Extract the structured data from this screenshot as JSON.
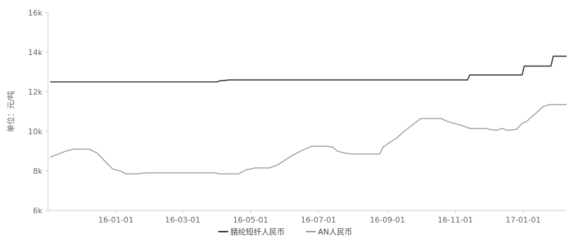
{
  "chart_data": {
    "type": "line",
    "title": "",
    "xlabel": "",
    "ylabel": "单位：元/吨",
    "ylim": [
      6000,
      16000
    ],
    "yticks": [
      {
        "value": 6000,
        "label": "6k"
      },
      {
        "value": 8000,
        "label": "8k"
      },
      {
        "value": 10000,
        "label": "10k"
      },
      {
        "value": 12000,
        "label": "12k"
      },
      {
        "value": 14000,
        "label": "14k"
      },
      {
        "value": 16000,
        "label": "16k"
      }
    ],
    "xlim": [
      "2015-11-01",
      "2017-02-09"
    ],
    "xticks": [
      {
        "value": "2016-01-01",
        "label": "16-01-01"
      },
      {
        "value": "2016-03-01",
        "label": "16-03-01"
      },
      {
        "value": "2016-05-01",
        "label": "16-05-01"
      },
      {
        "value": "2016-07-01",
        "label": "16-07-01"
      },
      {
        "value": "2016-09-01",
        "label": "16-09-01"
      },
      {
        "value": "2016-11-01",
        "label": "16-11-01"
      },
      {
        "value": "2017-01-01",
        "label": "17-01-01"
      }
    ],
    "grid": false,
    "legend_position": "bottom-center",
    "series": [
      {
        "name": "腈纶短纤人民币",
        "color": "#333333",
        "points": [
          [
            "2015-11-03",
            12500
          ],
          [
            "2016-04-01",
            12500
          ],
          [
            "2016-04-03",
            12550
          ],
          [
            "2016-04-12",
            12600
          ],
          [
            "2016-11-12",
            12600
          ],
          [
            "2016-11-14",
            12850
          ],
          [
            "2016-12-31",
            12850
          ],
          [
            "2017-01-02",
            13300
          ],
          [
            "2017-01-26",
            13300
          ],
          [
            "2017-01-28",
            13800
          ],
          [
            "2017-02-09",
            13800
          ]
        ]
      },
      {
        "name": "AN人民币",
        "color": "#999999",
        "points": [
          [
            "2015-11-03",
            8700
          ],
          [
            "2015-11-10",
            8850
          ],
          [
            "2015-11-17",
            9000
          ],
          [
            "2015-11-24",
            9100
          ],
          [
            "2015-12-01",
            9100
          ],
          [
            "2015-12-08",
            9100
          ],
          [
            "2015-12-15",
            8900
          ],
          [
            "2015-12-22",
            8500
          ],
          [
            "2015-12-29",
            8100
          ],
          [
            "2016-01-05",
            8000
          ],
          [
            "2016-01-10",
            7850
          ],
          [
            "2016-01-20",
            7850
          ],
          [
            "2016-01-28",
            7900
          ],
          [
            "2016-03-31",
            7900
          ],
          [
            "2016-04-02",
            7850
          ],
          [
            "2016-04-20",
            7850
          ],
          [
            "2016-04-27",
            8050
          ],
          [
            "2016-05-05",
            8150
          ],
          [
            "2016-05-18",
            8150
          ],
          [
            "2016-05-25",
            8300
          ],
          [
            "2016-06-01",
            8550
          ],
          [
            "2016-06-08",
            8800
          ],
          [
            "2016-06-15",
            9000
          ],
          [
            "2016-06-25",
            9250
          ],
          [
            "2016-07-08",
            9250
          ],
          [
            "2016-07-14",
            9200
          ],
          [
            "2016-07-18",
            9000
          ],
          [
            "2016-07-25",
            8900
          ],
          [
            "2016-08-01",
            8850
          ],
          [
            "2016-08-25",
            8850
          ],
          [
            "2016-08-28",
            9200
          ],
          [
            "2016-09-02",
            9400
          ],
          [
            "2016-09-09",
            9650
          ],
          [
            "2016-09-16",
            10000
          ],
          [
            "2016-09-23",
            10300
          ],
          [
            "2016-10-01",
            10650
          ],
          [
            "2016-10-19",
            10650
          ],
          [
            "2016-10-25",
            10500
          ],
          [
            "2016-10-31",
            10400
          ],
          [
            "2016-11-07",
            10300
          ],
          [
            "2016-11-14",
            10150
          ],
          [
            "2016-11-28",
            10150
          ],
          [
            "2016-12-02",
            10100
          ],
          [
            "2016-12-08",
            10050
          ],
          [
            "2016-12-13",
            10150
          ],
          [
            "2016-12-18",
            10050
          ],
          [
            "2016-12-26",
            10100
          ],
          [
            "2016-12-31",
            10400
          ],
          [
            "2017-01-04",
            10500
          ],
          [
            "2017-01-09",
            10750
          ],
          [
            "2017-01-14",
            11000
          ],
          [
            "2017-01-19",
            11250
          ],
          [
            "2017-01-24",
            11350
          ],
          [
            "2017-02-09",
            11350
          ]
        ]
      }
    ]
  }
}
